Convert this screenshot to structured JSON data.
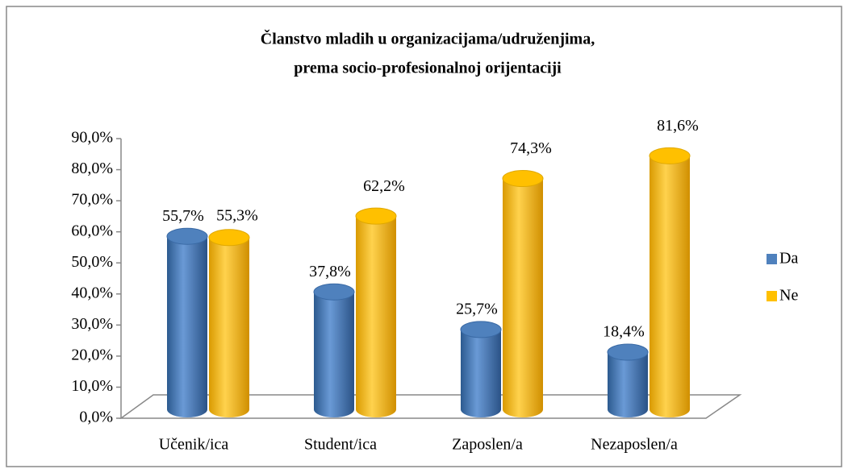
{
  "chart_data": {
    "type": "bar3d",
    "title": [
      "Članstvo mladih u organizacijama/udruženjima,",
      "prema socio-profesionalnoj orijentaciji"
    ],
    "categories": [
      "Učenik/ica",
      "Student/ica",
      "Zaposlen/a",
      "Nezaposlen/a"
    ],
    "series": [
      {
        "name": "Da",
        "color": "#4f81bd",
        "values": [
          55.7,
          37.8,
          25.7,
          18.4
        ],
        "value_labels": [
          "55,7%",
          "37,8%",
          "25,7%",
          "18,4%"
        ]
      },
      {
        "name": "Ne",
        "color": "#ffc000",
        "values": [
          55.3,
          62.2,
          74.3,
          81.6
        ],
        "value_labels": [
          "55,3%",
          "62,2%",
          "74,3%",
          "81,6%"
        ]
      }
    ],
    "ylim": [
      0,
      90
    ],
    "yticks": [
      {
        "value": 0,
        "label": "0,0%"
      },
      {
        "value": 10,
        "label": "10,0%"
      },
      {
        "value": 20,
        "label": "20,0%"
      },
      {
        "value": 30,
        "label": "30,0%"
      },
      {
        "value": 40,
        "label": "40,0%"
      },
      {
        "value": 50,
        "label": "50,0%"
      },
      {
        "value": 60,
        "label": "60,0%"
      },
      {
        "value": 70,
        "label": "70,0%"
      },
      {
        "value": 80,
        "label": "80,0%"
      },
      {
        "value": 90,
        "label": "90,0%"
      }
    ],
    "legend": "right"
  }
}
